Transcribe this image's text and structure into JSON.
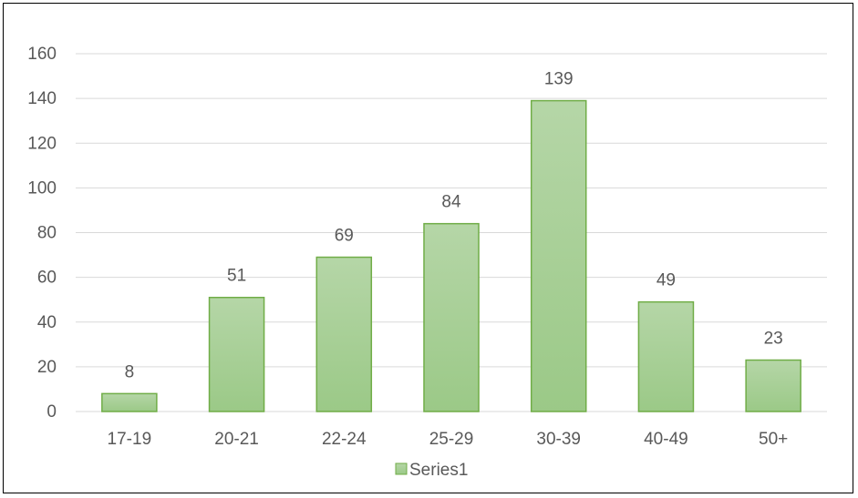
{
  "chart_data": {
    "type": "bar",
    "categories": [
      "17-19",
      "20-21",
      "22-24",
      "25-29",
      "30-39",
      "40-49",
      "50+"
    ],
    "series": [
      {
        "name": "Series1",
        "values": [
          8,
          51,
          69,
          84,
          139,
          49,
          23
        ]
      }
    ],
    "title": "",
    "xlabel": "",
    "ylabel": "",
    "ylim": [
      0,
      160
    ],
    "yticks": [
      0,
      20,
      40,
      60,
      80,
      100,
      120,
      140,
      160
    ],
    "grid": true,
    "legend": "bottom",
    "data_labels": true,
    "colors": {
      "bar_fill_top": "#b5d6a7",
      "bar_fill_bottom": "#9bc987",
      "bar_stroke": "#70ad47",
      "grid": "#d9d9d9",
      "text": "#595959"
    }
  }
}
